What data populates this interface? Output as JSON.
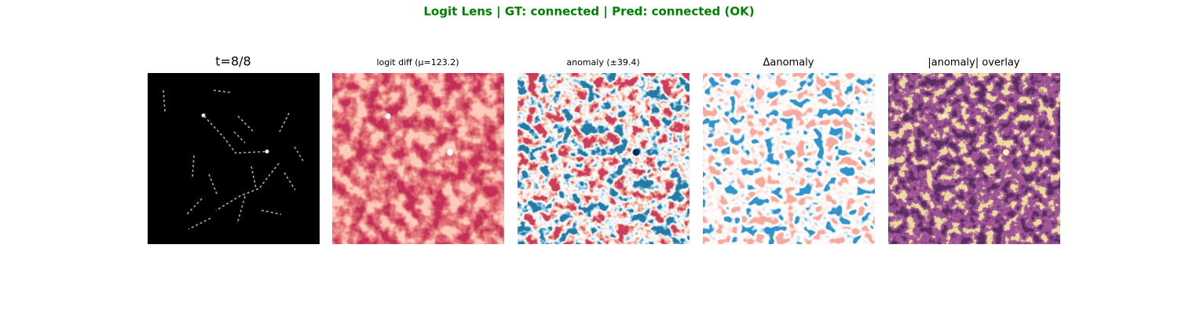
{
  "title": "Logit Lens | GT: connected | Pred: connected (OK)",
  "panels": [
    {
      "title": "t=8/8"
    },
    {
      "title": "logit diff (μ=123.2)"
    },
    {
      "title": "anomaly (±39.4)"
    },
    {
      "title": "Δanomaly"
    },
    {
      "title": "|anomaly| overlay"
    }
  ]
}
